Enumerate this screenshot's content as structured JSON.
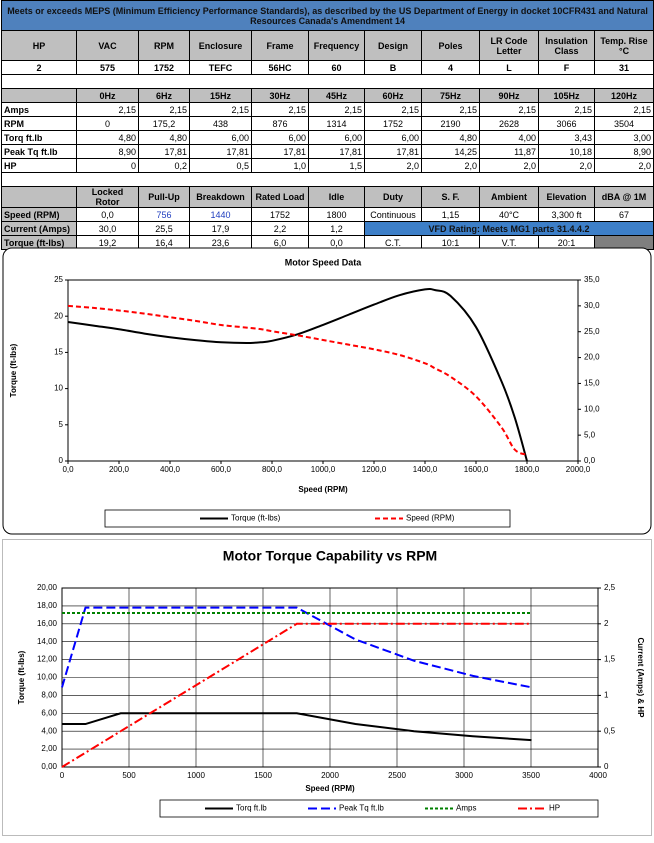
{
  "header": {
    "title": "Meets or exceeds MEPS (Minimum Efficiency Performance Standards), as described by the US Department of Energy in docket 10CFR431 and Natural Resources Canada's Amendment 14"
  },
  "spec_table": {
    "headers": [
      "HP",
      "VAC",
      "RPM",
      "Enclosure",
      "Frame",
      "Frequency",
      "Design",
      "Poles",
      "LR Code Letter",
      "Insulation Class",
      "Temp. Rise °C"
    ],
    "values": [
      "2",
      "575",
      "1752",
      "TEFC",
      "56HC",
      "60",
      "B",
      "4",
      "L",
      "F",
      "31"
    ]
  },
  "freq_table": {
    "headers": [
      "0Hz",
      "6Hz",
      "15Hz",
      "30Hz",
      "45Hz",
      "60Hz",
      "75Hz",
      "90Hz",
      "105Hz",
      "120Hz"
    ],
    "rows": [
      {
        "label": "Amps",
        "cells": [
          "2,15",
          "2,15",
          "2,15",
          "2,15",
          "2,15",
          "2,15",
          "2,15",
          "2,15",
          "2,15",
          "2,15"
        ]
      },
      {
        "label": "RPM",
        "cells": [
          "0",
          "175,2",
          "438",
          "876",
          "1314",
          "1752",
          "2190",
          "2628",
          "3066",
          "3504"
        ]
      },
      {
        "label": "Torq ft.lb",
        "cells": [
          "4,80",
          "4,80",
          "6,00",
          "6,00",
          "6,00",
          "6,00",
          "4,80",
          "4,00",
          "3,43",
          "3,00"
        ]
      },
      {
        "label": "Peak Tq ft.lb",
        "cells": [
          "8,90",
          "17,81",
          "17,81",
          "17,81",
          "17,81",
          "17,81",
          "14,25",
          "11,87",
          "10,18",
          "8,90"
        ]
      },
      {
        "label": "HP",
        "cells": [
          "0",
          "0,2",
          "0,5",
          "1,0",
          "1,5",
          "2,0",
          "2,0",
          "2,0",
          "2,0",
          "2,0"
        ]
      }
    ]
  },
  "perf_table": {
    "headers": [
      "Locked Rotor",
      "Pull-Up",
      "Breakdown",
      "Rated Load",
      "Idle",
      "Duty",
      "S. F.",
      "Ambient",
      "Elevation",
      "dBA @ 1M"
    ],
    "rows": [
      {
        "label": "Speed (RPM)",
        "cells": [
          "0,0",
          "756",
          "1440",
          "1752",
          "1800",
          "Continuous",
          "1,15",
          "40°C",
          "3,300 ft",
          "67"
        ]
      },
      {
        "label": "Current (Amps)",
        "cells": [
          "30,0",
          "25,5",
          "17,9",
          "2,2",
          "1,2"
        ],
        "note": "VFD Rating: Meets MG1 parts 31.4.4.2"
      },
      {
        "label": "Torque (ft-lbs)",
        "cells": [
          "19,2",
          "16,4",
          "23,6",
          "6,0",
          "0,0",
          "C.T.",
          "10:1",
          "V.T.",
          "20:1"
        ]
      }
    ]
  },
  "chart_data": [
    {
      "type": "line",
      "title": "Motor Speed Data",
      "x_label": "Speed (RPM)",
      "y_label": "Torque (ft-lbs)",
      "smooth": true,
      "grid": false,
      "x": [
        0,
        100,
        200,
        300,
        400,
        500,
        600,
        700,
        756,
        800,
        900,
        1000,
        1100,
        1200,
        1300,
        1400,
        1440,
        1500,
        1600,
        1700,
        1752,
        1800
      ],
      "series": [
        {
          "name": "Torque (ft-lbs)",
          "color": "#000000",
          "dash": "solid",
          "values": [
            19.2,
            18.7,
            18.2,
            17.6,
            17.1,
            16.7,
            16.4,
            16.3,
            16.4,
            16.6,
            17.5,
            18.8,
            20.2,
            21.6,
            22.9,
            23.7,
            23.6,
            22.8,
            18.5,
            11,
            6.0,
            0.0
          ]
        },
        {
          "name": "Speed (RPM)",
          "color": "#ff0000",
          "dash": "dash",
          "axis": "y2",
          "values": [
            30,
            29.6,
            29.1,
            28.5,
            27.8,
            27.1,
            26.3,
            25.8,
            25.5,
            25.1,
            24.3,
            23.4,
            22.5,
            21.6,
            20.5,
            18.9,
            17.9,
            16.3,
            12.5,
            6.5,
            2.2,
            1.2
          ]
        }
      ],
      "xlim": [
        0,
        2000
      ],
      "xticks": [
        {
          "value": 0,
          "label": "0,0"
        },
        {
          "value": 200,
          "label": "200,0"
        },
        {
          "value": 400,
          "label": "400,0"
        },
        {
          "value": 600,
          "label": "600,0"
        },
        {
          "value": 800,
          "label": "800,0"
        },
        {
          "value": 1000,
          "label": "1000,0"
        },
        {
          "value": 1200,
          "label": "1200,0"
        },
        {
          "value": 1400,
          "label": "1400,0"
        },
        {
          "value": 1600,
          "label": "1600,0"
        },
        {
          "value": 1800,
          "label": "1800,0"
        },
        {
          "value": 2000,
          "label": "2000,0"
        }
      ],
      "ylim": [
        0,
        25
      ],
      "yticks": [
        0,
        5,
        10,
        15,
        20,
        25
      ],
      "y2lim": [
        0,
        35
      ],
      "y2ticks": [
        {
          "value": 0,
          "label": "0,0"
        },
        {
          "value": 5,
          "label": "5,0"
        },
        {
          "value": 10,
          "label": "10,0"
        },
        {
          "value": 15,
          "label": "15,0"
        },
        {
          "value": 20,
          "label": "20,0"
        },
        {
          "value": 25,
          "label": "25,0"
        },
        {
          "value": 30,
          "label": "30,0"
        },
        {
          "value": 35,
          "label": "35,0"
        }
      ]
    },
    {
      "type": "line",
      "title": "Motor Torque Capability vs RPM",
      "x_label": "Speed (RPM)",
      "y_label": "Torque (ft-lbs)",
      "y2_label": "Current (Amps) & HP",
      "smooth": false,
      "grid": true,
      "x": [
        0,
        175.2,
        438,
        876,
        1314,
        1752,
        2190,
        2628,
        3066,
        3504
      ],
      "series": [
        {
          "name": "Torq ft.lb",
          "color": "#000000",
          "dash": "solid",
          "values": [
            4.8,
            4.8,
            6.0,
            6.0,
            6.0,
            6.0,
            4.8,
            4.0,
            3.43,
            3.0
          ]
        },
        {
          "name": "Peak Tq ft.lb",
          "color": "#0000ff",
          "dash": "longdash",
          "values": [
            8.9,
            17.81,
            17.81,
            17.81,
            17.81,
            17.81,
            14.25,
            11.87,
            10.18,
            8.9
          ]
        },
        {
          "name": "Amps",
          "color": "#008000",
          "dash": "shortdash",
          "axis": "y2",
          "values": [
            2.15,
            2.15,
            2.15,
            2.15,
            2.15,
            2.15,
            2.15,
            2.15,
            2.15,
            2.15
          ]
        },
        {
          "name": "HP",
          "color": "#ff0000",
          "dash": "dashdot",
          "axis": "y2",
          "values": [
            0,
            0.2,
            0.5,
            1.0,
            1.5,
            2.0,
            2.0,
            2.0,
            2.0,
            2.0
          ]
        }
      ],
      "xlim": [
        0,
        4000
      ],
      "xticks": [
        0,
        500,
        1000,
        1500,
        2000,
        2500,
        3000,
        3500,
        4000
      ],
      "ylim": [
        0,
        20
      ],
      "yticks": [
        {
          "value": 0,
          "label": "0,00"
        },
        {
          "value": 2,
          "label": "2,00"
        },
        {
          "value": 4,
          "label": "4,00"
        },
        {
          "value": 6,
          "label": "6,00"
        },
        {
          "value": 8,
          "label": "8,00"
        },
        {
          "value": 10,
          "label": "10,00"
        },
        {
          "value": 12,
          "label": "12,00"
        },
        {
          "value": 14,
          "label": "14,00"
        },
        {
          "value": 16,
          "label": "16,00"
        },
        {
          "value": 18,
          "label": "18,00"
        },
        {
          "value": 20,
          "label": "20,00"
        }
      ],
      "y2lim": [
        0,
        2.5
      ],
      "y2ticks": [
        0,
        {
          "value": 0.5,
          "label": "0,5"
        },
        1,
        {
          "value": 1.5,
          "label": "1,5"
        },
        2,
        {
          "value": 2.5,
          "label": "2,5"
        }
      ]
    }
  ]
}
